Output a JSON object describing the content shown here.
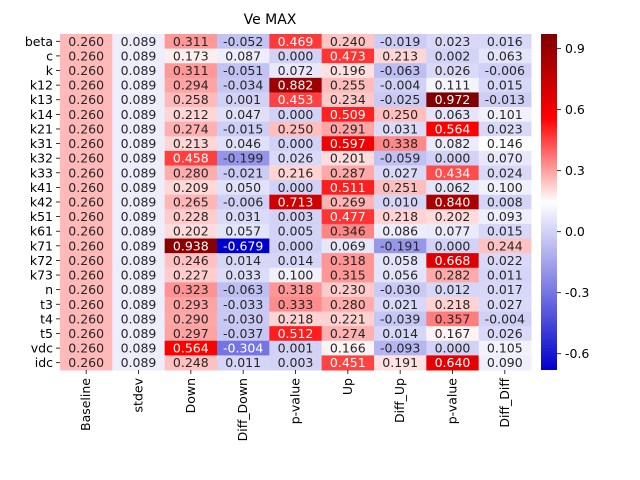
{
  "chart_data": {
    "type": "heatmap",
    "title": "Ve MAX",
    "columns": [
      "Baseline",
      "stdev",
      "Down",
      "Diff_Down",
      "p-value",
      "Up",
      "Diff_Up",
      "p-value",
      "Diff_Diff"
    ],
    "rows": [
      "beta",
      "c",
      "k",
      "k12",
      "k13",
      "k14",
      "k21",
      "k31",
      "k32",
      "k33",
      "k41",
      "k42",
      "k51",
      "k61",
      "k71",
      "k72",
      "k73",
      "n",
      "t3",
      "t4",
      "t5",
      "vdc",
      "idc"
    ],
    "values": [
      [
        "0.260",
        "0.089",
        "0.311",
        "-0.052",
        "0.469",
        "0.240",
        "-0.019",
        "0.023",
        "0.016"
      ],
      [
        "0.260",
        "0.089",
        "0.173",
        "0.087",
        "0.000",
        "0.473",
        "0.213",
        "0.002",
        "0.063"
      ],
      [
        "0.260",
        "0.089",
        "0.311",
        "-0.051",
        "0.072",
        "0.196",
        "-0.063",
        "0.026",
        "-0.006"
      ],
      [
        "0.260",
        "0.089",
        "0.294",
        "-0.034",
        "0.882",
        "0.255",
        "-0.004",
        "0.111",
        "0.015"
      ],
      [
        "0.260",
        "0.089",
        "0.258",
        "0.001",
        "0.453",
        "0.234",
        "-0.025",
        "0.972",
        "-0.013"
      ],
      [
        "0.260",
        "0.089",
        "0.212",
        "0.047",
        "0.000",
        "0.509",
        "0.250",
        "0.063",
        "0.101"
      ],
      [
        "0.260",
        "0.089",
        "0.274",
        "-0.015",
        "0.250",
        "0.291",
        "0.031",
        "0.564",
        "0.023"
      ],
      [
        "0.260",
        "0.089",
        "0.213",
        "0.046",
        "0.000",
        "0.597",
        "0.338",
        "0.082",
        "0.146"
      ],
      [
        "0.260",
        "0.089",
        "0.458",
        "-0.199",
        "0.026",
        "0.201",
        "-0.059",
        "0.000",
        "0.070"
      ],
      [
        "0.260",
        "0.089",
        "0.280",
        "-0.021",
        "0.216",
        "0.287",
        "0.027",
        "0.434",
        "0.024"
      ],
      [
        "0.260",
        "0.089",
        "0.209",
        "0.050",
        "0.000",
        "0.511",
        "0.251",
        "0.062",
        "0.100"
      ],
      [
        "0.260",
        "0.089",
        "0.265",
        "-0.006",
        "0.713",
        "0.269",
        "0.010",
        "0.840",
        "0.008"
      ],
      [
        "0.260",
        "0.089",
        "0.228",
        "0.031",
        "0.003",
        "0.477",
        "0.218",
        "0.202",
        "0.093"
      ],
      [
        "0.260",
        "0.089",
        "0.202",
        "0.057",
        "0.005",
        "0.346",
        "0.086",
        "0.077",
        "0.015"
      ],
      [
        "0.260",
        "0.089",
        "0.938",
        "-0.679",
        "0.000",
        "0.069",
        "-0.191",
        "0.000",
        "0.244"
      ],
      [
        "0.260",
        "0.089",
        "0.246",
        "0.014",
        "0.014",
        "0.318",
        "0.058",
        "0.668",
        "0.022"
      ],
      [
        "0.260",
        "0.089",
        "0.227",
        "0.033",
        "0.100",
        "0.315",
        "0.056",
        "0.282",
        "0.011"
      ],
      [
        "0.260",
        "0.089",
        "0.323",
        "-0.063",
        "0.318",
        "0.230",
        "-0.030",
        "0.012",
        "0.017"
      ],
      [
        "0.260",
        "0.089",
        "0.293",
        "-0.033",
        "0.333",
        "0.280",
        "0.021",
        "0.218",
        "0.027"
      ],
      [
        "0.260",
        "0.089",
        "0.290",
        "-0.030",
        "0.218",
        "0.221",
        "-0.039",
        "0.357",
        "-0.004"
      ],
      [
        "0.260",
        "0.089",
        "0.297",
        "-0.037",
        "0.512",
        "0.274",
        "0.014",
        "0.167",
        "0.026"
      ],
      [
        "0.260",
        "0.089",
        "0.564",
        "-0.304",
        "0.001",
        "0.166",
        "-0.093",
        "0.000",
        "0.105"
      ],
      [
        "0.260",
        "0.089",
        "0.248",
        "0.011",
        "0.003",
        "0.451",
        "0.191",
        "0.640",
        "0.090"
      ]
    ],
    "colormap": "seismic",
    "colors": {
      "low": "#0000cc",
      "mid": "#ffffff",
      "high": "#800000",
      "red": "#ff0000"
    },
    "vmin": -0.68,
    "vmax": 0.972,
    "colorbar_ticks": [
      "0.9",
      "0.6",
      "0.3",
      "0.0",
      "-0.3",
      "-0.6"
    ],
    "colorbar_values": [
      0.9,
      0.6,
      0.3,
      0.0,
      -0.3,
      -0.6
    ],
    "legend": "right"
  }
}
